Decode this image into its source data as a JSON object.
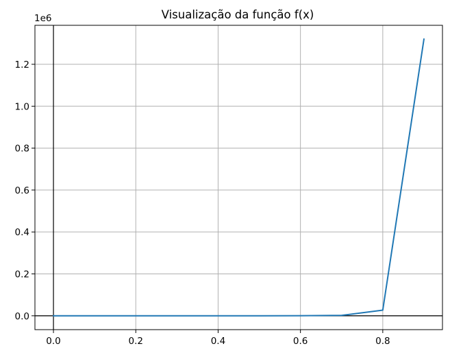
{
  "chart_data": {
    "type": "line",
    "title": "Visualização da função f(x)",
    "xlabel": "",
    "ylabel": "",
    "y_offset_label": "1e6",
    "xlim": [
      -0.045,
      0.945
    ],
    "ylim": [
      -0.066,
      1.386
    ],
    "x_ticks": [
      0.0,
      0.2,
      0.4,
      0.6,
      0.8
    ],
    "x_tick_labels": [
      "0.0",
      "0.2",
      "0.4",
      "0.6",
      "0.8"
    ],
    "y_ticks": [
      0.0,
      0.2,
      0.4,
      0.6,
      0.8,
      1.0,
      1.2
    ],
    "y_tick_labels": [
      "0.0",
      "0.2",
      "0.4",
      "0.6",
      "0.8",
      "1.0",
      "1.2"
    ],
    "grid": true,
    "reference_lines": {
      "x": 0,
      "y": 0
    },
    "series": [
      {
        "color": "#1f77b4",
        "x": [
          0.0,
          0.1,
          0.2,
          0.3,
          0.4,
          0.5,
          0.6,
          0.7,
          0.8,
          0.9
        ],
        "y": [
          0.0,
          0.0,
          0.0,
          0.0,
          0.0,
          0.0,
          0.0005,
          0.002,
          0.027,
          1.32
        ]
      }
    ]
  }
}
